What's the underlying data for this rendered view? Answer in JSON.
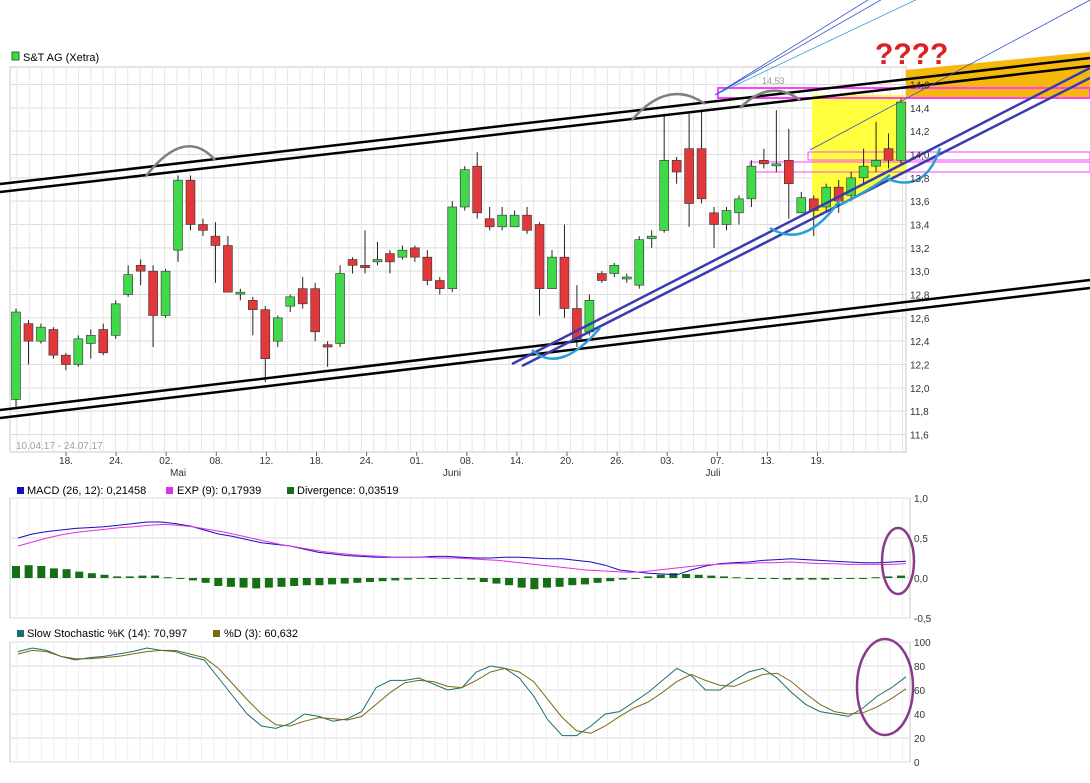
{
  "colors": {
    "up_candle": "#3fd94a",
    "down_candle": "#e0383b",
    "macd": "#1010c0",
    "exp": "#e030e0",
    "divergence": "#157015",
    "stoch_k": "#1d6f6f",
    "stoch_d": "#7a6a10",
    "channel": "#000000",
    "support": "#3b3bb0",
    "annotation_blue": "#2a9fd6",
    "annotation_purple": "#8a3a8a",
    "question": "#e02020",
    "highlight_yellow": "#ffff33",
    "highlight_orange": "#f5b400",
    "resistance_magenta": "#ff40ff"
  },
  "question_marks": "????",
  "chart_data": [
    {
      "type": "candlestick",
      "title": "S&T AG (Xetra)",
      "date_range_label": "10.04.17 - 24.07.17",
      "x_tick_labels": [
        "18.",
        "24.",
        "02.",
        "08.",
        "12.",
        "18.",
        "24.",
        "01.",
        "08.",
        "14.",
        "20.",
        "26.",
        "03.",
        "07.",
        "13.",
        "19."
      ],
      "month_labels": [
        "Mai",
        "Juni",
        "Juli"
      ],
      "y_tick_labels": [
        "11,6",
        "11,8",
        "12,0",
        "12,2",
        "12,4",
        "12,6",
        "12,8",
        "13,0",
        "13,2",
        "13,4",
        "13,6",
        "13,8",
        "14,0",
        "14,2",
        "14,4",
        "14,6"
      ],
      "ylim": [
        11.45,
        14.75
      ],
      "ohlc": [
        [
          11.9,
          12.65,
          11.82,
          12.68
        ],
        [
          12.55,
          12.4,
          12.2,
          12.58
        ],
        [
          12.4,
          12.52,
          12.38,
          12.55
        ],
        [
          12.5,
          12.28,
          12.25,
          12.52
        ],
        [
          12.28,
          12.2,
          12.15,
          12.3
        ],
        [
          12.2,
          12.42,
          12.18,
          12.45
        ],
        [
          12.38,
          12.45,
          12.25,
          12.5
        ],
        [
          12.5,
          12.3,
          12.28,
          12.55
        ],
        [
          12.45,
          12.72,
          12.42,
          12.75
        ],
        [
          12.8,
          12.97,
          12.78,
          13.05
        ],
        [
          13.05,
          13.0,
          12.88,
          13.1
        ],
        [
          13.0,
          12.62,
          12.35,
          13.05
        ],
        [
          12.62,
          13.0,
          12.6,
          13.02
        ],
        [
          13.18,
          13.78,
          13.08,
          13.82
        ],
        [
          13.78,
          13.4,
          13.35,
          13.82
        ],
        [
          13.4,
          13.35,
          13.3,
          13.45
        ],
        [
          13.3,
          13.22,
          12.9,
          13.42
        ],
        [
          13.22,
          12.82,
          12.82,
          13.3
        ],
        [
          12.82,
          12.82,
          12.75,
          12.85
        ],
        [
          12.75,
          12.67,
          12.45,
          12.78
        ],
        [
          12.67,
          12.25,
          12.05,
          12.7
        ],
        [
          12.4,
          12.6,
          12.35,
          12.62
        ],
        [
          12.7,
          12.78,
          12.65,
          12.8
        ],
        [
          12.85,
          12.72,
          12.68,
          12.95
        ],
        [
          12.85,
          12.48,
          12.4,
          12.9
        ],
        [
          12.37,
          12.35,
          12.18,
          12.4
        ],
        [
          12.38,
          12.98,
          12.35,
          13.05
        ],
        [
          13.1,
          13.05,
          12.98,
          13.12
        ],
        [
          13.05,
          13.03,
          12.98,
          13.35
        ],
        [
          13.08,
          13.1,
          13.05,
          13.25
        ],
        [
          13.15,
          13.08,
          12.98,
          13.18
        ],
        [
          13.12,
          13.18,
          13.1,
          13.22
        ],
        [
          13.2,
          13.12,
          13.08,
          13.22
        ],
        [
          13.12,
          12.92,
          12.88,
          13.18
        ],
        [
          12.92,
          12.85,
          12.8,
          12.95
        ],
        [
          12.85,
          13.55,
          12.82,
          13.6
        ],
        [
          13.55,
          13.87,
          13.52,
          13.9
        ],
        [
          13.9,
          13.5,
          13.45,
          14.02
        ],
        [
          13.45,
          13.38,
          13.35,
          13.55
        ],
        [
          13.38,
          13.48,
          13.35,
          13.55
        ],
        [
          13.38,
          13.48,
          13.38,
          13.52
        ],
        [
          13.48,
          13.35,
          13.32,
          13.55
        ],
        [
          13.4,
          12.85,
          12.62,
          13.42
        ],
        [
          12.85,
          13.12,
          12.85,
          13.18
        ],
        [
          13.12,
          12.68,
          12.6,
          13.4
        ],
        [
          12.68,
          12.42,
          12.35,
          12.88
        ],
        [
          12.48,
          12.75,
          12.45,
          12.8
        ],
        [
          12.98,
          12.92,
          12.9,
          13.0
        ],
        [
          12.98,
          13.05,
          12.95,
          13.07
        ],
        [
          12.95,
          12.95,
          12.9,
          12.98
        ],
        [
          12.88,
          13.27,
          12.85,
          13.3
        ],
        [
          13.28,
          13.3,
          13.2,
          13.35
        ],
        [
          13.35,
          13.95,
          13.33,
          14.35
        ],
        [
          13.95,
          13.85,
          13.75,
          13.98
        ],
        [
          14.05,
          13.58,
          13.38,
          14.35
        ],
        [
          14.05,
          13.62,
          13.58,
          14.38
        ],
        [
          13.5,
          13.4,
          13.2,
          13.55
        ],
        [
          13.4,
          13.52,
          13.35,
          13.55
        ],
        [
          13.5,
          13.62,
          13.4,
          13.65
        ],
        [
          13.62,
          13.9,
          13.55,
          13.95
        ],
        [
          13.95,
          13.92,
          13.88,
          14.05
        ],
        [
          13.92,
          13.92,
          13.85,
          14.38
        ],
        [
          13.95,
          13.75,
          13.45,
          14.22
        ],
        [
          13.5,
          13.63,
          13.5,
          13.68
        ],
        [
          13.62,
          13.52,
          13.3,
          13.65
        ],
        [
          13.55,
          13.72,
          13.5,
          13.75
        ],
        [
          13.72,
          13.6,
          13.5,
          13.78
        ],
        [
          13.65,
          13.8,
          13.6,
          13.85
        ],
        [
          13.8,
          13.9,
          13.75,
          14.05
        ],
        [
          13.9,
          13.95,
          13.85,
          14.28
        ],
        [
          14.05,
          13.95,
          13.88,
          14.18
        ],
        [
          13.95,
          14.45,
          13.9,
          14.48
        ]
      ],
      "price_marker": "14,53"
    },
    {
      "type": "macd",
      "legend": [
        {
          "name": "MACD (26, 12): 0,21458"
        },
        {
          "name": "EXP (9): 0,17939"
        },
        {
          "name": "Divergence: 0,03519"
        }
      ],
      "y_tick_labels": [
        "1,0",
        "0,5",
        "0,0",
        "-0,5"
      ],
      "ylim": [
        -0.5,
        1.0
      ],
      "macd": [
        0.5,
        0.55,
        0.58,
        0.6,
        0.62,
        0.63,
        0.64,
        0.66,
        0.68,
        0.7,
        0.7,
        0.68,
        0.65,
        0.6,
        0.55,
        0.52,
        0.48,
        0.44,
        0.42,
        0.4,
        0.36,
        0.32,
        0.3,
        0.28,
        0.27,
        0.26,
        0.26,
        0.26,
        0.26,
        0.27,
        0.27,
        0.26,
        0.25,
        0.25,
        0.26,
        0.26,
        0.25,
        0.24,
        0.24,
        0.22,
        0.2,
        0.16,
        0.1,
        0.08,
        0.06,
        0.05,
        0.04,
        0.1,
        0.15,
        0.18,
        0.19,
        0.2,
        0.22,
        0.23,
        0.24,
        0.23,
        0.22,
        0.21,
        0.2,
        0.19,
        0.19,
        0.2,
        0.21
      ],
      "exp": [
        0.4,
        0.45,
        0.5,
        0.54,
        0.57,
        0.59,
        0.61,
        0.63,
        0.64,
        0.66,
        0.67,
        0.66,
        0.64,
        0.61,
        0.58,
        0.54,
        0.5,
        0.46,
        0.42,
        0.39,
        0.36,
        0.33,
        0.31,
        0.29,
        0.28,
        0.27,
        0.26,
        0.26,
        0.26,
        0.25,
        0.25,
        0.24,
        0.23,
        0.22,
        0.2,
        0.18,
        0.16,
        0.14,
        0.12,
        0.1,
        0.09,
        0.08,
        0.07,
        0.08,
        0.1,
        0.12,
        0.14,
        0.16,
        0.17,
        0.18,
        0.18,
        0.19,
        0.19,
        0.2,
        0.19,
        0.18,
        0.18,
        0.17,
        0.17,
        0.17,
        0.17,
        0.18
      ],
      "divergence": [
        0.15,
        0.16,
        0.15,
        0.12,
        0.11,
        0.08,
        0.06,
        0.04,
        0.02,
        0.02,
        0.03,
        0.03,
        0.01,
        -0.01,
        -0.03,
        -0.06,
        -0.1,
        -0.11,
        -0.12,
        -0.13,
        -0.12,
        -0.11,
        -0.1,
        -0.09,
        -0.09,
        -0.08,
        -0.07,
        -0.06,
        -0.05,
        -0.04,
        -0.03,
        -0.02,
        -0.01,
        0.0,
        0.0,
        -0.01,
        -0.02,
        -0.05,
        -0.07,
        -0.09,
        -0.12,
        -0.14,
        -0.12,
        -0.11,
        -0.09,
        -0.08,
        -0.06,
        -0.04,
        -0.02,
        0.0,
        0.02,
        0.04,
        0.06,
        0.05,
        0.04,
        0.03,
        0.02,
        0.01,
        0.0,
        -0.01,
        -0.01,
        -0.02,
        -0.02,
        -0.02,
        -0.02,
        -0.01,
        -0.01,
        0.0,
        0.01,
        0.02,
        0.03
      ]
    },
    {
      "type": "line",
      "legend": [
        {
          "name": "Slow Stochastic %K (14): 70,997"
        },
        {
          "name": "%D (3): 60,632"
        }
      ],
      "y_tick_labels": [
        "100",
        "80",
        "60",
        "40",
        "20",
        "0"
      ],
      "ylim": [
        0,
        100
      ],
      "k": [
        92,
        95,
        93,
        88,
        85,
        87,
        88,
        90,
        92,
        95,
        93,
        92,
        88,
        85,
        70,
        55,
        40,
        30,
        28,
        32,
        40,
        38,
        34,
        36,
        42,
        62,
        68,
        68,
        70,
        65,
        60,
        62,
        75,
        80,
        78,
        70,
        55,
        35,
        22,
        22,
        30,
        40,
        42,
        50,
        58,
        68,
        78,
        72,
        60,
        60,
        68,
        75,
        78,
        70,
        58,
        48,
        42,
        40,
        38,
        45,
        55,
        62,
        71
      ],
      "d": [
        90,
        93,
        92,
        88,
        86,
        86,
        87,
        88,
        90,
        92,
        93,
        93,
        90,
        87,
        78,
        65,
        52,
        40,
        31,
        30,
        34,
        37,
        36,
        35,
        38,
        48,
        58,
        66,
        68,
        67,
        63,
        62,
        68,
        75,
        78,
        75,
        67,
        52,
        37,
        26,
        24,
        30,
        38,
        45,
        50,
        58,
        67,
        73,
        68,
        64,
        63,
        68,
        73,
        74,
        67,
        57,
        48,
        42,
        40,
        41,
        46,
        53,
        61
      ]
    }
  ]
}
